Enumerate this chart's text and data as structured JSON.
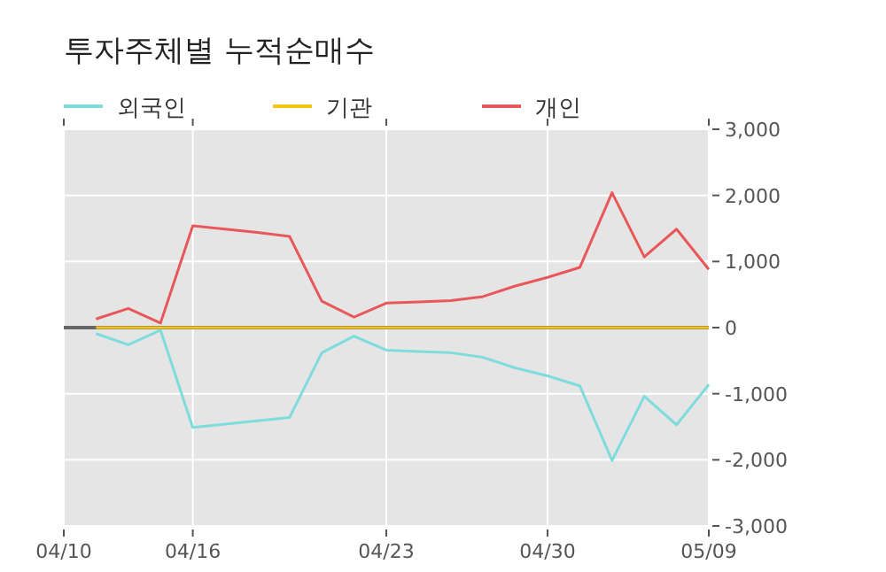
{
  "chart_data": {
    "type": "line",
    "title": "투자주체별 누적순매수",
    "categories": [
      "04/10",
      null,
      null,
      null,
      "04/16",
      null,
      null,
      null,
      null,
      null,
      "04/23",
      null,
      null,
      null,
      null,
      "04/30",
      null,
      null,
      null,
      null,
      "05/09"
    ],
    "series": [
      {
        "name": "외국인",
        "color": "#7fdcdc",
        "values": [
          null,
          -90,
          -260,
          -40,
          -1510,
          -1460,
          -1410,
          -1360,
          -380,
          -130,
          -340,
          -360,
          -380,
          -450,
          -610,
          -730,
          -880,
          -2010,
          -1040,
          -1470,
          -860
        ]
      },
      {
        "name": "기관",
        "color": "#f5c518",
        "values": [
          null,
          0,
          0,
          0,
          0,
          0,
          0,
          0,
          0,
          0,
          0,
          0,
          0,
          0,
          0,
          0,
          0,
          0,
          0,
          0,
          0
        ]
      },
      {
        "name": "개인",
        "color": "#e8585a",
        "values": [
          null,
          130,
          290,
          70,
          1540,
          1490,
          1440,
          1380,
          400,
          160,
          370,
          390,
          410,
          470,
          630,
          760,
          910,
          2040,
          1070,
          1490,
          880
        ]
      }
    ],
    "ylim": [
      -3000,
      3000
    ],
    "yticks": [
      {
        "value": -3000,
        "label": "-3,000"
      },
      {
        "value": -2000,
        "label": "-2,000"
      },
      {
        "value": -1000,
        "label": "-1,000"
      },
      0,
      {
        "value": 1000,
        "label": "1,000"
      },
      {
        "value": 2000,
        "label": "2,000"
      },
      {
        "value": 3000,
        "label": "3,000"
      }
    ],
    "ref_lines": [
      {
        "axis": "y",
        "value": 0,
        "color": "#666666"
      }
    ],
    "grid": true,
    "legend": "top left",
    "marker": "none",
    "line_style": "solid"
  }
}
